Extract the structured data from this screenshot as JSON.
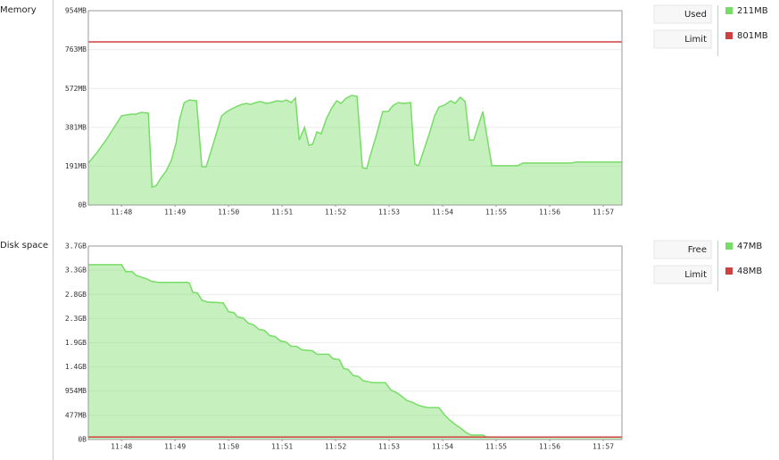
{
  "chart_data": [
    {
      "type": "area",
      "title": "Memory",
      "xlim": [
        47.38,
        57.35
      ],
      "xticks": [
        {
          "value": 48,
          "label": "11:48"
        },
        {
          "value": 49,
          "label": "11:49"
        },
        {
          "value": 50,
          "label": "11:50"
        },
        {
          "value": 51,
          "label": "11:51"
        },
        {
          "value": 52,
          "label": "11:52"
        },
        {
          "value": 53,
          "label": "11:53"
        },
        {
          "value": 54,
          "label": "11:54"
        },
        {
          "value": 55,
          "label": "11:55"
        },
        {
          "value": 56,
          "label": "11:56"
        },
        {
          "value": 57,
          "label": "11:57"
        }
      ],
      "ylim": [
        0,
        954
      ],
      "yticks": [
        {
          "value": 0,
          "label": "0B"
        },
        {
          "value": 191,
          "label": "191MB"
        },
        {
          "value": 381,
          "label": "381MB"
        },
        {
          "value": 572,
          "label": "572MB"
        },
        {
          "value": 763,
          "label": "763MB"
        },
        {
          "value": 954,
          "label": "954MB"
        }
      ],
      "grid": true,
      "series": [
        {
          "name": "Used",
          "color": "#77dd66",
          "last_label": "211MB",
          "x": [
            47.38,
            47.53,
            47.7,
            47.83,
            48,
            48.17,
            48.27,
            48.37,
            48.5,
            48.57,
            48.65,
            48.73,
            48.83,
            48.93,
            49.02,
            49.08,
            49.17,
            49.27,
            49.4,
            49.5,
            49.58,
            49.67,
            49.77,
            49.87,
            49.97,
            50.07,
            50.17,
            50.25,
            50.33,
            50.42,
            50.5,
            50.6,
            50.7,
            50.8,
            50.9,
            51,
            51.08,
            51.17,
            51.25,
            51.32,
            51.42,
            51.5,
            51.57,
            51.65,
            51.73,
            51.83,
            51.92,
            52.02,
            52.1,
            52.2,
            52.3,
            52.4,
            52.5,
            52.58,
            52.67,
            52.77,
            52.88,
            52.98,
            53.08,
            53.17,
            53.27,
            53.4,
            53.48,
            53.55,
            53.65,
            53.75,
            53.85,
            53.93,
            54.03,
            54.15,
            54.23,
            54.33,
            54.42,
            54.5,
            54.58,
            54.67,
            54.75,
            54.92,
            55.4,
            55.5,
            56.4,
            56.5,
            57.35
          ],
          "values": [
            206,
            254,
            315,
            368,
            438,
            446,
            446,
            455,
            451,
            88,
            96,
            131,
            166,
            219,
            306,
            416,
            503,
            516,
            512,
            188,
            188,
            263,
            350,
            438,
            459,
            473,
            486,
            494,
            499,
            494,
            503,
            508,
            499,
            503,
            512,
            508,
            516,
            503,
            525,
            319,
            381,
            293,
            298,
            359,
            350,
            424,
            473,
            512,
            499,
            525,
            538,
            534,
            184,
            179,
            263,
            350,
            459,
            459,
            490,
            503,
            499,
            503,
            201,
            193,
            271,
            350,
            438,
            481,
            490,
            512,
            499,
            529,
            508,
            319,
            319,
            394,
            459,
            193,
            193,
            206,
            206,
            211,
            211
          ]
        },
        {
          "name": "Limit",
          "color": "#d04040",
          "value": 801,
          "last_label": "801MB"
        }
      ]
    },
    {
      "type": "area",
      "title": "Disk space",
      "xlim": [
        47.38,
        57.35
      ],
      "xticks": [
        {
          "value": 48,
          "label": "11:48"
        },
        {
          "value": 49,
          "label": "11:49"
        },
        {
          "value": 50,
          "label": "11:50"
        },
        {
          "value": 51,
          "label": "11:51"
        },
        {
          "value": 52,
          "label": "11:52"
        },
        {
          "value": 53,
          "label": "11:53"
        },
        {
          "value": 54,
          "label": "11:54"
        },
        {
          "value": 55,
          "label": "11:55"
        },
        {
          "value": 56,
          "label": "11:56"
        },
        {
          "value": 57,
          "label": "11:57"
        }
      ],
      "ylim": [
        0,
        3815
      ],
      "yticks": [
        {
          "value": 0,
          "label": "0B"
        },
        {
          "value": 477,
          "label": "477MB"
        },
        {
          "value": 954,
          "label": "954MB"
        },
        {
          "value": 1431,
          "label": "1.4GB"
        },
        {
          "value": 1907,
          "label": "1.9GB"
        },
        {
          "value": 2384,
          "label": "2.3GB"
        },
        {
          "value": 2861,
          "label": "2.8GB"
        },
        {
          "value": 3338,
          "label": "3.3GB"
        },
        {
          "value": 3815,
          "label": "3.7GB"
        }
      ],
      "grid": true,
      "series": [
        {
          "name": "Free",
          "color": "#77dd66",
          "last_label": "47MB",
          "x": [
            47.38,
            48,
            48.08,
            48.2,
            48.27,
            48.37,
            48.47,
            48.57,
            48.7,
            49.23,
            49.27,
            49.33,
            49.42,
            49.5,
            49.6,
            49.9,
            50,
            50.1,
            50.17,
            50.27,
            50.37,
            50.47,
            50.57,
            50.67,
            50.77,
            50.87,
            50.97,
            51.07,
            51.17,
            51.27,
            51.37,
            51.57,
            51.65,
            51.87,
            51.95,
            52.07,
            52.15,
            52.23,
            52.33,
            52.43,
            52.52,
            52.62,
            52.7,
            52.93,
            53.03,
            53.13,
            53.23,
            53.33,
            53.43,
            53.53,
            53.63,
            53.73,
            53.93,
            54.03,
            54.13,
            54.23,
            54.33,
            54.43,
            54.53,
            54.75,
            54.82,
            57.35
          ],
          "values": [
            3448,
            3448,
            3308,
            3308,
            3238,
            3203,
            3168,
            3115,
            3098,
            3098,
            3080,
            2905,
            2888,
            2748,
            2713,
            2695,
            2520,
            2503,
            2415,
            2398,
            2293,
            2258,
            2170,
            2153,
            2048,
            2030,
            1943,
            1925,
            1838,
            1838,
            1768,
            1750,
            1680,
            1680,
            1593,
            1575,
            1400,
            1383,
            1260,
            1243,
            1155,
            1138,
            1120,
            1120,
            980,
            928,
            858,
            770,
            735,
            683,
            648,
            630,
            630,
            490,
            385,
            298,
            228,
            140,
            88,
            88,
            47,
            47
          ]
        },
        {
          "name": "Limit",
          "color": "#d04040",
          "value": 48,
          "last_label": "48MB"
        }
      ]
    }
  ]
}
